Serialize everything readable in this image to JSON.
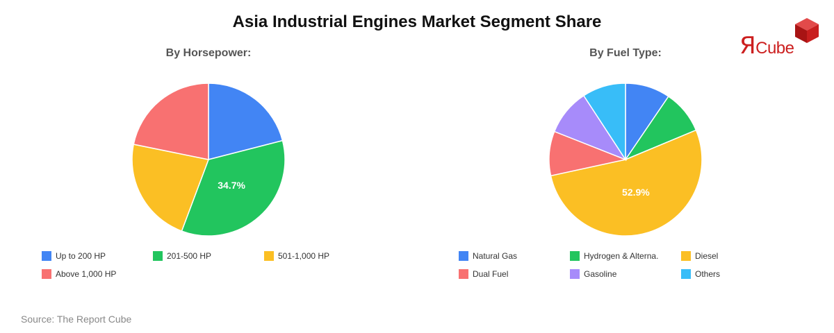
{
  "title": "Asia Industrial Engines Market Segment Share",
  "source": "Source: The Report Cube",
  "logo": {
    "r_glyph": "Я",
    "text": "Cube",
    "color": "#cc1f1f"
  },
  "chart_data": [
    {
      "type": "pie",
      "title": "By Horsepower:",
      "start_angle_deg": 0,
      "labeled_slice": 1,
      "slices": [
        {
          "label": "Up to 200 HP",
          "value": 21.0,
          "color": "#4285f4"
        },
        {
          "label": "201-500 HP",
          "value": 34.7,
          "value_label": "34.7%",
          "color": "#22c55e"
        },
        {
          "label": "501-1,000 HP",
          "value": 22.5,
          "color": "#fbbf24"
        },
        {
          "label": "Above 1,000 HP",
          "value": 21.8,
          "color": "#f87171"
        }
      ]
    },
    {
      "type": "pie",
      "title": "By Fuel Type:",
      "start_angle_deg": 0,
      "labeled_slice": 2,
      "slices": [
        {
          "label": "Natural Gas",
          "value": 9.5,
          "color": "#4285f4"
        },
        {
          "label": "Hydrogen & Alterna.",
          "value": 9.2,
          "color": "#22c55e"
        },
        {
          "label": "Diesel",
          "value": 52.9,
          "value_label": "52.9%",
          "color": "#fbbf24"
        },
        {
          "label": "Dual Fuel",
          "value": 9.4,
          "color": "#f87171"
        },
        {
          "label": "Gasoline",
          "value": 9.8,
          "color": "#a78bfa"
        },
        {
          "label": "Others",
          "value": 9.2,
          "color": "#38bdf8"
        }
      ]
    }
  ]
}
